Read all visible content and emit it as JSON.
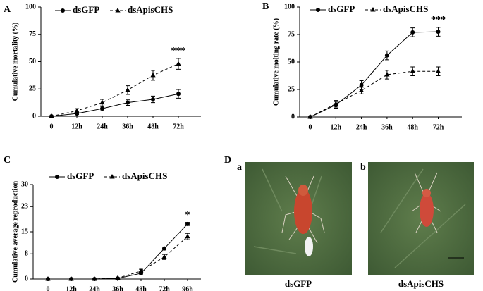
{
  "chart_data": [
    {
      "type": "line",
      "panel_label": "A",
      "y_label": "Cumulative mortality (%)",
      "categories": [
        "0",
        "12h",
        "24h",
        "36h",
        "48h",
        "72h"
      ],
      "ylim": [
        0,
        100
      ],
      "yticks": [
        0,
        25,
        50,
        75,
        100
      ],
      "series": [
        {
          "name": "dsGFP",
          "color": "#000000",
          "marker": "circle",
          "line_style": "solid",
          "values": [
            0,
            2.5,
            7,
            12.5,
            15.5,
            20.5
          ],
          "errors": [
            0,
            1,
            2,
            2.5,
            3,
            4
          ]
        },
        {
          "name": "dsApisCHS",
          "color": "#000000",
          "marker": "triangle",
          "line_style": "dashed",
          "values": [
            0,
            5,
            12.5,
            24,
            37.5,
            48
          ],
          "errors": [
            0,
            2,
            3,
            4,
            4.5,
            5
          ]
        }
      ],
      "annotations": [
        {
          "text": "***",
          "x": "72h"
        }
      ]
    },
    {
      "type": "line",
      "panel_label": "B",
      "y_label": "Cumulative molting rate (%)",
      "categories": [
        "0",
        "12h",
        "24h",
        "36h",
        "48h",
        "72h"
      ],
      "ylim": [
        0,
        100
      ],
      "yticks": [
        0,
        25,
        50,
        75,
        100
      ],
      "series": [
        {
          "name": "dsGFP",
          "color": "#000000",
          "marker": "circle",
          "line_style": "solid",
          "values": [
            0,
            11,
            29,
            56,
            77,
            77.5
          ],
          "errors": [
            0,
            3,
            4,
            4,
            4,
            4
          ]
        },
        {
          "name": "dsApisCHS",
          "color": "#000000",
          "marker": "triangle",
          "line_style": "dashed",
          "values": [
            0,
            12,
            24,
            38.5,
            41.5,
            41.5
          ],
          "errors": [
            0,
            3,
            3,
            4,
            4,
            4
          ]
        }
      ],
      "annotations": [
        {
          "text": "***",
          "x": "72h"
        }
      ]
    },
    {
      "type": "line",
      "panel_label": "C",
      "y_label": "Cumulative average reproduction",
      "categories": [
        "0",
        "12h",
        "24h",
        "36h",
        "48h",
        "72h",
        "96h"
      ],
      "ylim": [
        0,
        30
      ],
      "yticks": [
        0,
        8,
        15,
        23,
        30
      ],
      "series": [
        {
          "name": "dsGFP",
          "color": "#000000",
          "marker": "circle",
          "line_style": "solid",
          "values": [
            0,
            0,
            0,
            0.2,
            1.8,
            9.7,
            17.5
          ],
          "errors": [
            0,
            0,
            0,
            0.1,
            0.5,
            0.5,
            0.5
          ]
        },
        {
          "name": "dsApisCHS",
          "color": "#000000",
          "marker": "triangle",
          "line_style": "dashed",
          "values": [
            0,
            0,
            0,
            0.3,
            2.5,
            7,
            13.5
          ],
          "errors": [
            0,
            0,
            0,
            0.1,
            0.6,
            0.8,
            1
          ]
        }
      ],
      "annotations": [
        {
          "text": "*",
          "x": "96h"
        }
      ]
    }
  ],
  "figure_d": {
    "panel_label": "D",
    "images": [
      {
        "label": "a",
        "caption": "dsGFP"
      },
      {
        "label": "b",
        "caption": "dsApisCHS"
      }
    ]
  }
}
